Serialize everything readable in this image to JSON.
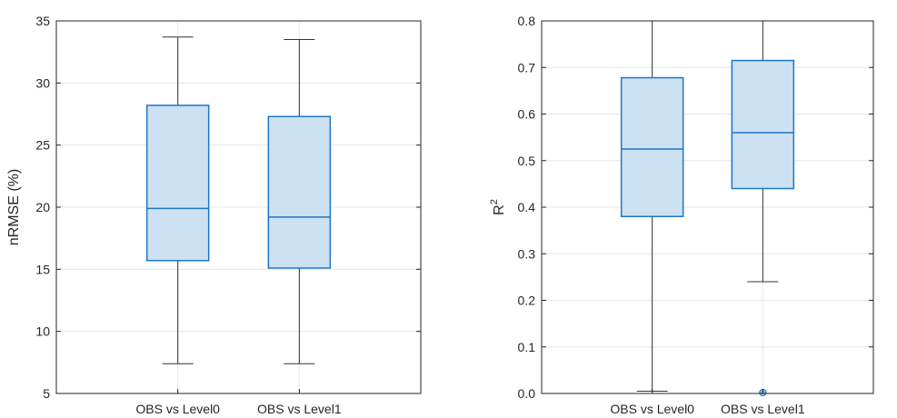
{
  "chart_data": [
    {
      "type": "boxplot",
      "ylabel": "nRMSE (%)",
      "ylim": [
        5,
        35
      ],
      "yticks": [
        5,
        10,
        15,
        20,
        25,
        30,
        35
      ],
      "categories": [
        "OBS vs Level0",
        "OBS vs Level1"
      ],
      "boxes": [
        {
          "whisker_low": 7.4,
          "q1": 15.7,
          "median": 19.9,
          "q3": 28.2,
          "whisker_high": 33.7,
          "outliers": []
        },
        {
          "whisker_low": 7.4,
          "q1": 15.1,
          "median": 19.2,
          "q3": 27.3,
          "whisker_high": 33.5,
          "outliers": []
        }
      ],
      "grid": true,
      "colors": {
        "fill": "#cce1f2",
        "edge": "#1f77c4",
        "whisker": "#333333"
      }
    },
    {
      "type": "boxplot",
      "ylabel_base": "R",
      "ylabel_sup": "2",
      "ylim": [
        0,
        0.8
      ],
      "yticks": [
        0,
        0.1,
        0.2,
        0.3,
        0.4,
        0.5,
        0.6,
        0.7,
        0.8
      ],
      "categories": [
        "OBS vs Level0",
        "OBS vs Level1"
      ],
      "boxes": [
        {
          "whisker_low": 0.005,
          "q1": 0.38,
          "median": 0.525,
          "q3": 0.678,
          "whisker_high": 0.8,
          "outliers": []
        },
        {
          "whisker_low": 0.24,
          "q1": 0.44,
          "median": 0.56,
          "q3": 0.715,
          "whisker_high": 0.8,
          "outliers": [
            0.002
          ]
        }
      ],
      "grid": true,
      "colors": {
        "fill": "#cce1f2",
        "edge": "#1f77c4",
        "whisker": "#333333"
      }
    }
  ]
}
